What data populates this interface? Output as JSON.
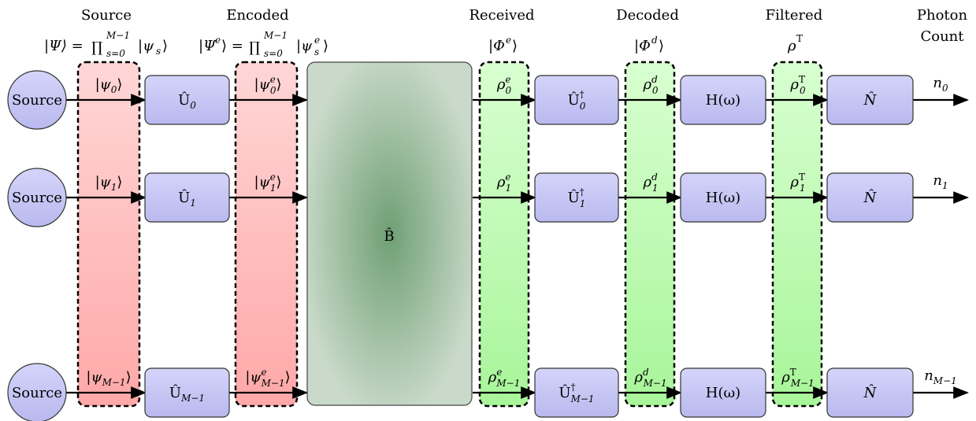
{
  "headers": {
    "source": "Source",
    "source_formula": "|Ψ⟩ = ∏ |ψs⟩",
    "source_prod_limits": {
      "upper": "M−1",
      "lower": "s=0"
    },
    "encoded": "Encoded",
    "encoded_formula": "|Ψe⟩ = ∏ |ψes⟩",
    "encoded_prod_limits": {
      "upper": "M−1",
      "lower": "s=0"
    },
    "received": "Received",
    "received_formula": "|Φe⟩",
    "decoded": "Decoded",
    "decoded_formula": "|Φd⟩",
    "filtered": "Filtered",
    "filtered_formula": "ρT",
    "photon_count_line1": "Photon",
    "photon_count_line2": "Count"
  },
  "channel_box": {
    "label": "B̂"
  },
  "rows": [
    {
      "source_label": "Source",
      "psi": {
        "base": "|ψ",
        "sub": "0",
        "sup": "",
        "close": "⟩"
      },
      "encoder": {
        "base": "Û",
        "sub": "0",
        "sup": ""
      },
      "psi_e": {
        "base": "|ψ",
        "sub": "0",
        "sup": "e",
        "close": "⟩"
      },
      "rho_e": {
        "base": "ρ",
        "sub": "0",
        "sup": "e"
      },
      "decoder": {
        "base": "Û",
        "sub": "0",
        "sup": "†"
      },
      "rho_d": {
        "base": "ρ",
        "sub": "0",
        "sup": "d"
      },
      "filter": "H(ω)",
      "rho_T": {
        "base": "ρ",
        "sub": "0",
        "sup": "T"
      },
      "detector": "N̂",
      "count": {
        "base": "n",
        "sub": "0"
      }
    },
    {
      "source_label": "Source",
      "psi": {
        "base": "|ψ",
        "sub": "1",
        "sup": "",
        "close": "⟩"
      },
      "encoder": {
        "base": "Û",
        "sub": "1",
        "sup": ""
      },
      "psi_e": {
        "base": "|ψ",
        "sub": "1",
        "sup": "e",
        "close": "⟩"
      },
      "rho_e": {
        "base": "ρ",
        "sub": "1",
        "sup": "e"
      },
      "decoder": {
        "base": "Û",
        "sub": "1",
        "sup": "†"
      },
      "rho_d": {
        "base": "ρ",
        "sub": "1",
        "sup": "d"
      },
      "filter": "H(ω)",
      "rho_T": {
        "base": "ρ",
        "sub": "1",
        "sup": "T"
      },
      "detector": "N̂",
      "count": {
        "base": "n",
        "sub": "1"
      }
    },
    {
      "source_label": "Source",
      "psi": {
        "base": "|ψ",
        "sub": "M−1",
        "sup": "",
        "close": "⟩"
      },
      "encoder": {
        "base": "Û",
        "sub": "M−1",
        "sup": ""
      },
      "psi_e": {
        "base": "|ψ",
        "sub": "M−1",
        "sup": "e",
        "close": "⟩"
      },
      "rho_e": {
        "base": "ρ",
        "sub": "M−1",
        "sup": "e"
      },
      "decoder": {
        "base": "Û",
        "sub": "M−1",
        "sup": "†"
      },
      "rho_d": {
        "base": "ρ",
        "sub": "M−1",
        "sup": "d"
      },
      "filter": "H(ω)",
      "rho_T": {
        "base": "ρ",
        "sub": "M−1",
        "sup": "T"
      },
      "detector": "N̂",
      "count": {
        "base": "n",
        "sub": "M−1"
      }
    }
  ],
  "colors": {
    "source_fill": "#c9c9f5",
    "block_fill": "#c8c8f3",
    "stroke": "#333333",
    "red_band_top": "#ffd6d6",
    "red_band_bottom": "#ffa8a8",
    "green_band_top": "#d8ffd0",
    "green_band_bottom": "#a8f59a",
    "channel_center": "#6f9f74",
    "channel_edge": "#cadaca"
  }
}
